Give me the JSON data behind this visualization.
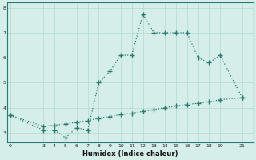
{
  "title": "",
  "xlabel": "Humidex (Indice chaleur)",
  "line1_x": [
    0,
    3,
    4,
    5,
    6,
    7,
    8,
    9,
    10,
    11,
    12,
    13,
    14,
    15,
    16,
    17,
    18,
    19,
    21
  ],
  "line1_y": [
    3.7,
    3.1,
    3.1,
    2.8,
    3.2,
    3.1,
    5.0,
    5.45,
    6.1,
    6.1,
    7.75,
    7.0,
    7.0,
    7.0,
    7.0,
    6.0,
    5.8,
    6.1,
    4.4
  ],
  "line2_x": [
    0,
    3,
    4,
    5,
    6,
    7,
    8,
    9,
    10,
    11,
    12,
    13,
    14,
    15,
    16,
    17,
    18,
    19,
    21
  ],
  "line2_y": [
    3.7,
    3.25,
    3.3,
    3.35,
    3.42,
    3.48,
    3.58,
    3.65,
    3.72,
    3.78,
    3.85,
    3.92,
    4.0,
    4.07,
    4.13,
    4.18,
    4.23,
    4.32,
    4.4
  ],
  "line_color": "#2a7b6f",
  "bg_color": "#d5eeea",
  "grid_color": "#b8ddd8",
  "yticks": [
    3,
    4,
    5,
    6,
    7,
    8
  ],
  "xticks": [
    0,
    3,
    4,
    5,
    6,
    7,
    8,
    9,
    10,
    11,
    12,
    13,
    14,
    15,
    16,
    17,
    18,
    19,
    21
  ],
  "ylim": [
    2.6,
    8.2
  ],
  "xlim": [
    -0.3,
    22.0
  ]
}
